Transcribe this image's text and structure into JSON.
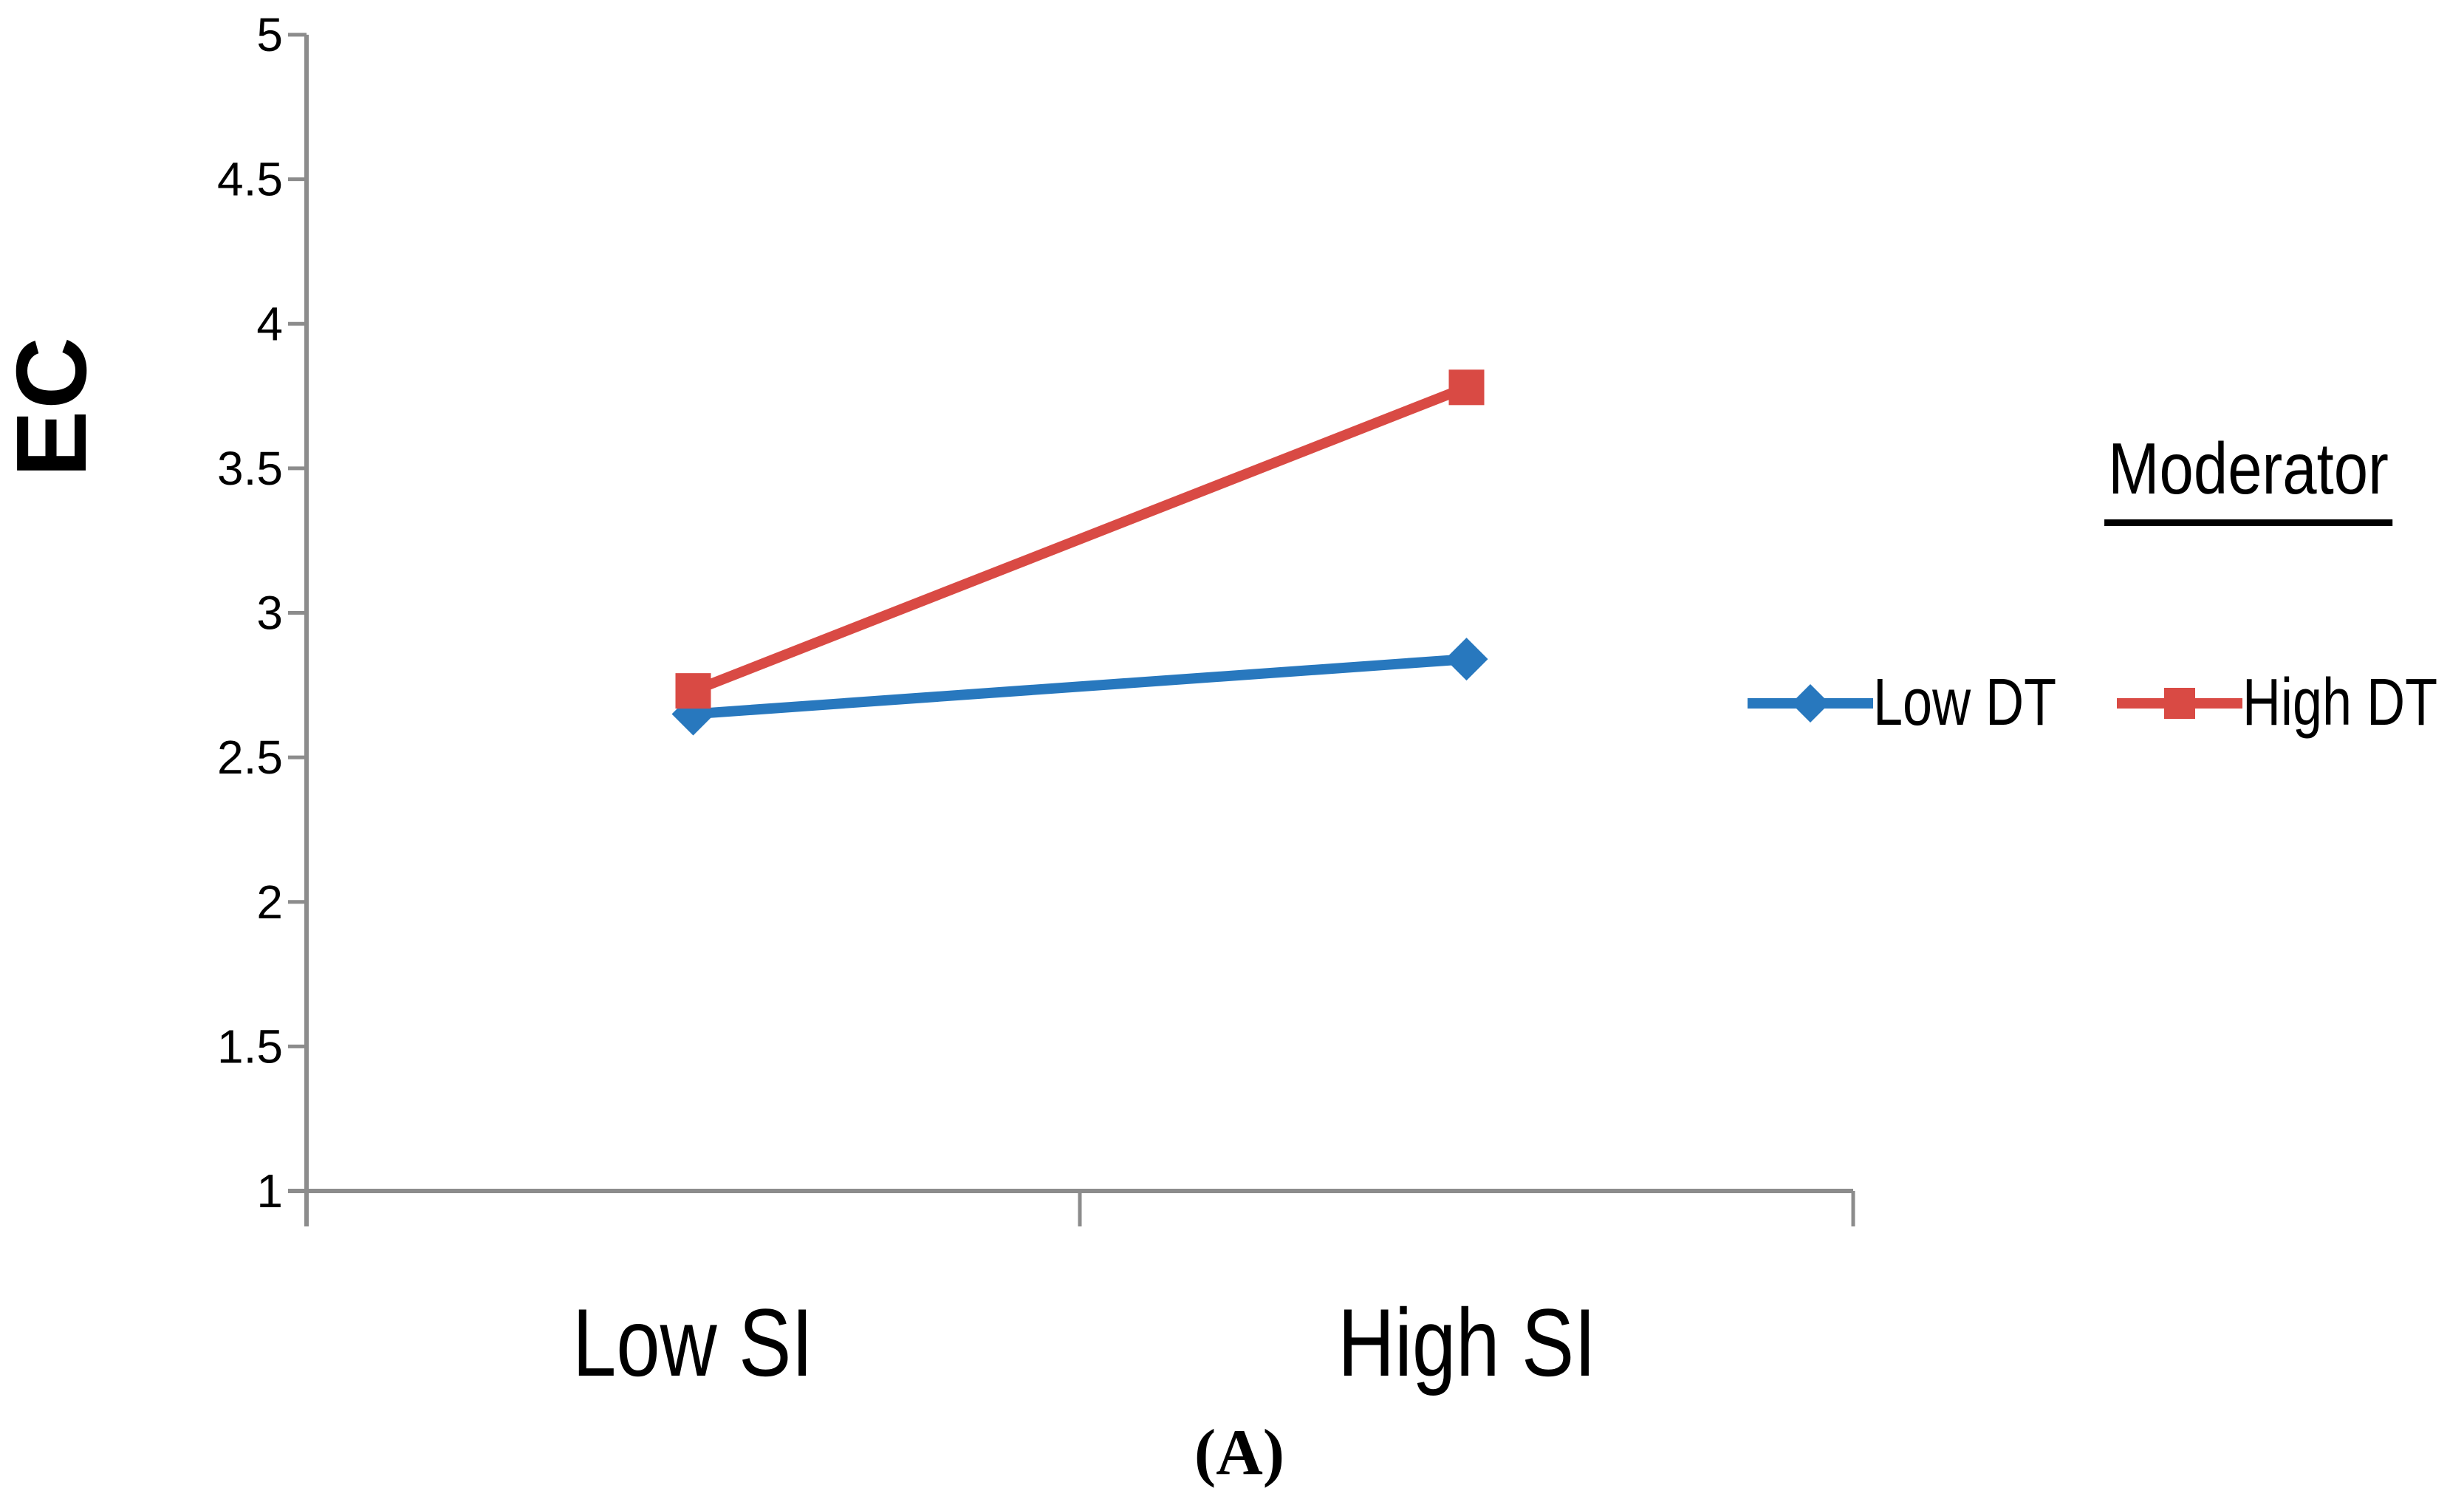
{
  "chart_data": {
    "type": "line",
    "title": "",
    "xlabel": "",
    "ylabel": "EC",
    "categories": [
      "Low SI",
      "High SI"
    ],
    "series": [
      {
        "name": "Low DT",
        "values": [
          2.65,
          2.84
        ],
        "color": "#2878BE",
        "marker": "diamond"
      },
      {
        "name": "High DT",
        "values": [
          2.73,
          3.78
        ],
        "color": "#D94A44",
        "marker": "square"
      }
    ],
    "ylim": [
      1,
      5
    ],
    "ytick_step": 0.5,
    "ytick_labels": [
      "5",
      "4.5",
      "4",
      "3.5",
      "3",
      "2.5",
      "2",
      "1.5",
      "1"
    ],
    "grid": false,
    "legend_title": "Moderator",
    "legend_position": "right",
    "axis_color": "#8C8C8C",
    "text_color": "#000000"
  },
  "caption": {
    "label": "(A)"
  }
}
